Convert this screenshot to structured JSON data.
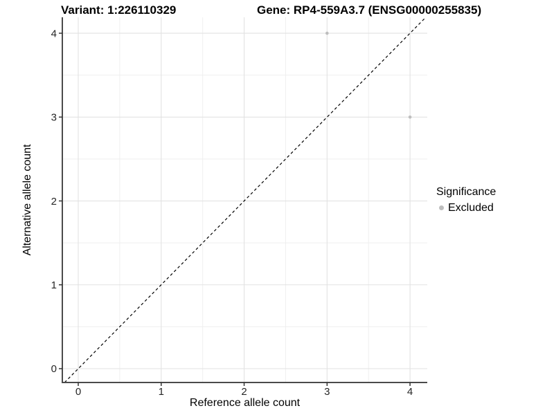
{
  "figure": {
    "title_left": "Variant: 1:226110329",
    "title_right": "Gene: RP4-559A3.7 (ENSG00000255835)"
  },
  "chart_data": {
    "type": "scatter",
    "xlabel": "Reference allele count",
    "ylabel": "Alternative allele count",
    "xlim": [
      -0.192,
      4.208
    ],
    "ylim": [
      -0.165,
      4.19
    ],
    "x_ticks": [
      0,
      1,
      2,
      3,
      4
    ],
    "y_ticks": [
      0,
      1,
      2,
      3,
      4
    ],
    "x_minor_gridlines": [
      0.5,
      1.5,
      2.5,
      3.5
    ],
    "y_minor_gridlines": [
      0.5,
      1.5,
      2.5,
      3.5
    ],
    "grid": "major+minor",
    "legend_position": "right",
    "series": [
      {
        "name": "Excluded",
        "points": [
          {
            "x": 3,
            "y": 4
          },
          {
            "x": 4,
            "y": 3
          }
        ],
        "color": "#bebebe"
      }
    ],
    "reference_line": {
      "slope": 1,
      "intercept": 0,
      "style": "dashed",
      "color": "#000000"
    },
    "legend": {
      "title": "Significance",
      "items": [
        {
          "label": "Excluded",
          "color": "#bebebe",
          "marker": "circle"
        }
      ]
    }
  },
  "colors": {
    "background": "#ffffff",
    "grid_major": "#e2e2e2",
    "grid_minor": "#efefef",
    "axis_line": "#4a4a4a",
    "tick_mark": "#333333",
    "tick_label": "#262626",
    "point": "#bebebe",
    "reference_line": "#000000"
  }
}
